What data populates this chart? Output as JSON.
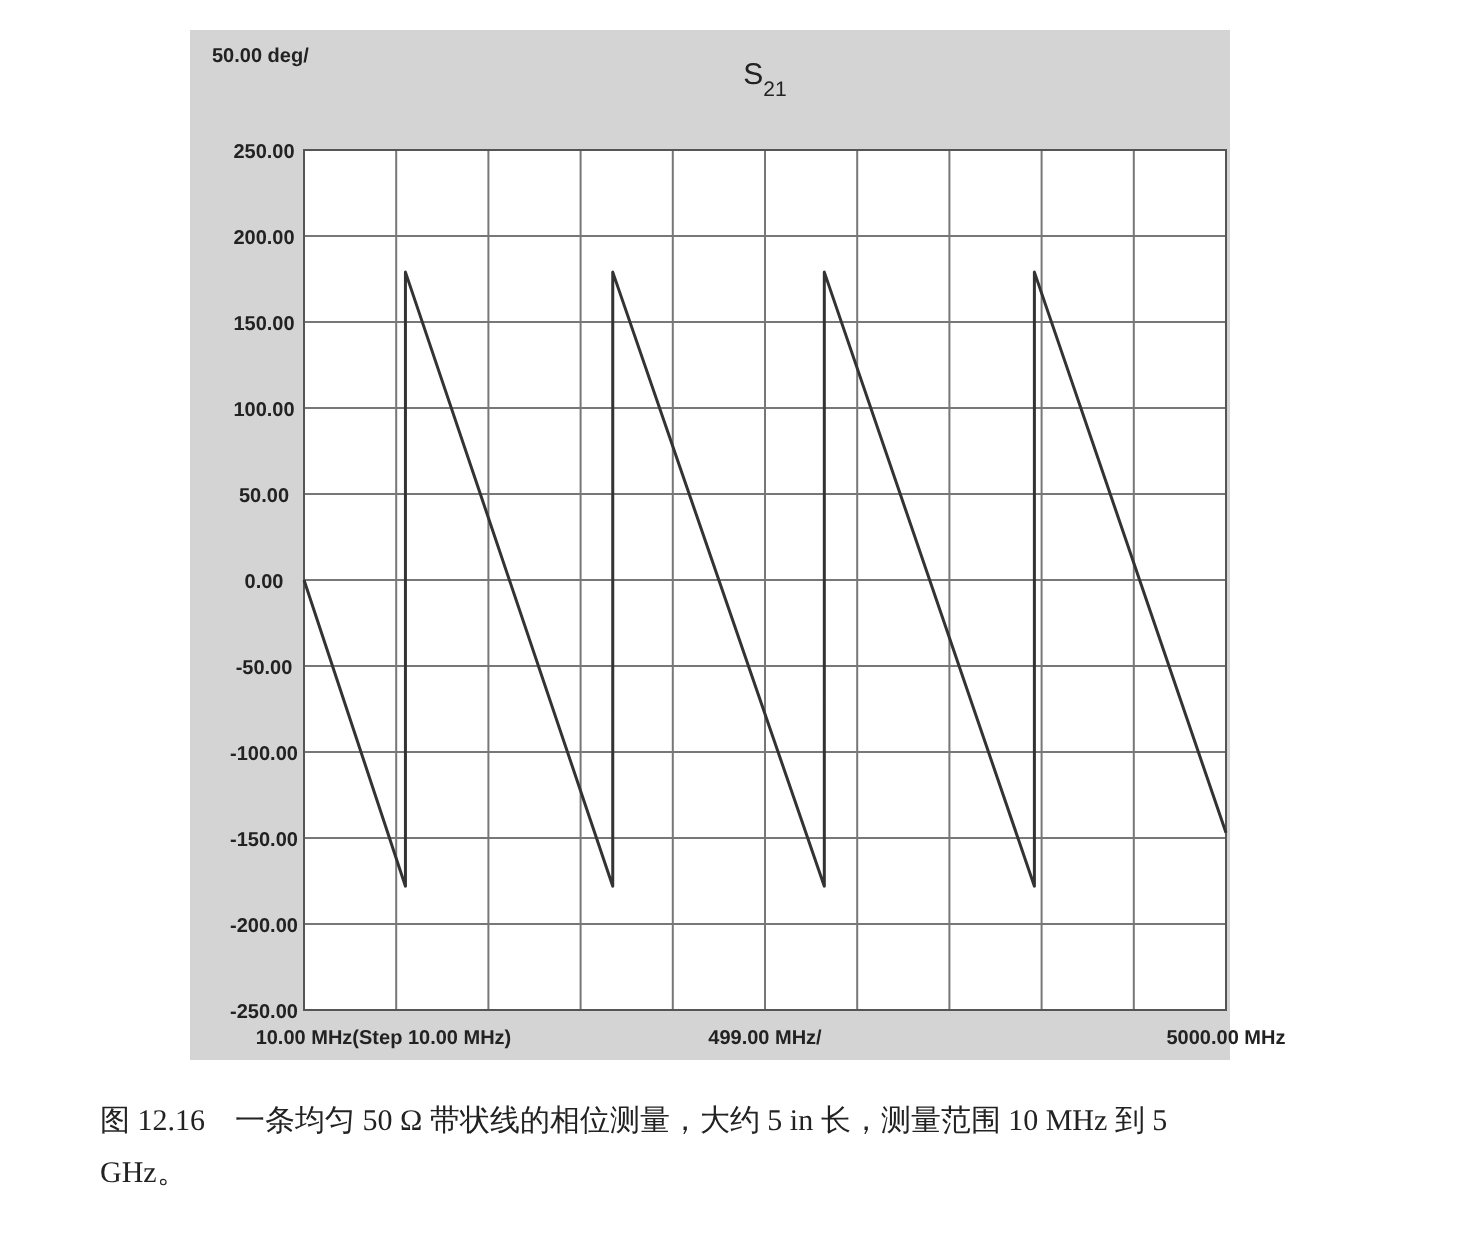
{
  "chart_data": {
    "type": "line",
    "title": "S$_{21}$",
    "ylabel": "50.00 deg/",
    "xlabel": "499.00 MHz/",
    "x": [
      10,
      559,
      559,
      1681,
      1681,
      2826,
      2826,
      3963,
      3963,
      5000
    ],
    "series": [
      {
        "color": "#333333",
        "values": [
          0,
          -178,
          179,
          -178,
          179,
          -178,
          179,
          -178,
          179,
          -147
        ]
      }
    ],
    "xlim": [
      10,
      5000
    ],
    "xticks": [
      {
        "value": 10,
        "label": "10.00 MHz"
      },
      {
        "value": 509,
        "label": null
      },
      {
        "value": 1008,
        "label": null
      },
      {
        "value": 1507,
        "label": null
      },
      {
        "value": 2006,
        "label": null
      },
      {
        "value": 2505,
        "label": null
      },
      {
        "value": 3004,
        "label": null
      },
      {
        "value": 3503,
        "label": null
      },
      {
        "value": 4002,
        "label": null
      },
      {
        "value": 4501,
        "label": null
      },
      {
        "value": 5000,
        "label": "5000.00 MHz"
      }
    ],
    "ylim": [
      -250,
      250
    ],
    "yticks": [
      {
        "value": -250,
        "label": "-250.00"
      },
      {
        "value": -200,
        "label": "-200.00"
      },
      {
        "value": -150,
        "label": "-150.00"
      },
      {
        "value": -100,
        "label": "-100.00"
      },
      {
        "value": -50,
        "label": "-50.00"
      },
      {
        "value": 0,
        "label": "0.00"
      },
      {
        "value": 50,
        "label": "50.00"
      },
      {
        "value": 100,
        "label": "100.00"
      },
      {
        "value": 150,
        "label": "150.00"
      },
      {
        "value": 200,
        "label": "200.00"
      },
      {
        "value": 250,
        "label": "250.00"
      }
    ],
    "grid": true,
    "marker": "none",
    "line_style": "solid",
    "annotations": [
      "(Step 10.00 MHz)",
      "图 12.16　一条均匀 50 Ω 带状线的相位测量，大约 5 in 长，测量范围 10 MHz 到 5 GHz。"
    ]
  }
}
